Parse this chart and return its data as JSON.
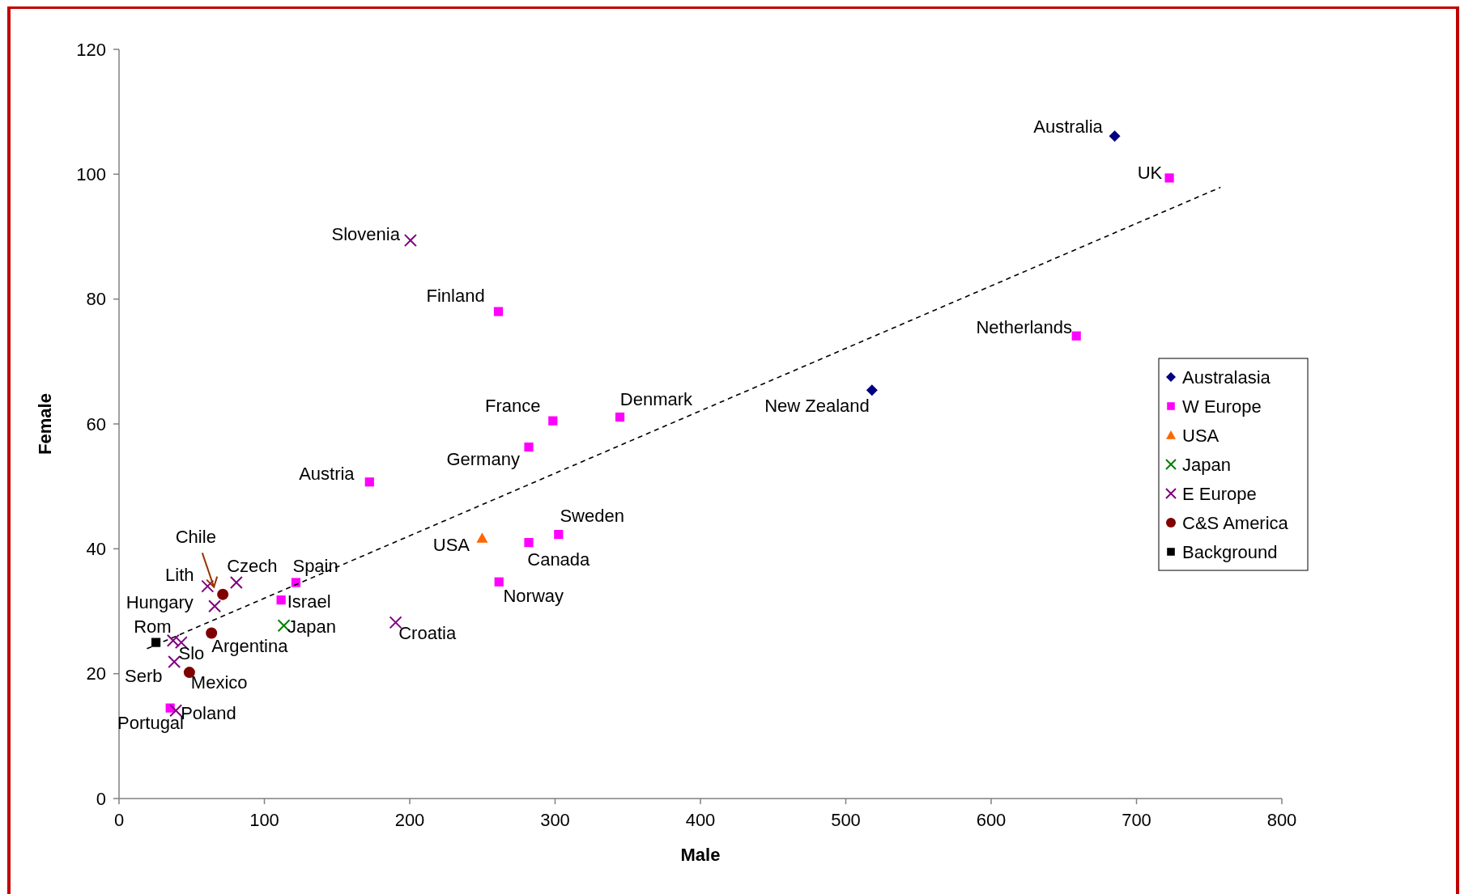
{
  "chart_data": {
    "type": "scatter",
    "xlabel": "Male",
    "ylabel": "Female",
    "xlim": [
      0,
      800
    ],
    "ylim": [
      0,
      120
    ],
    "xticks": [
      0,
      100,
      200,
      300,
      400,
      500,
      600,
      700,
      800
    ],
    "yticks": [
      0,
      20,
      40,
      60,
      80,
      100,
      120
    ],
    "grid": false,
    "legend": "right",
    "series": [
      {
        "name": "Australasia",
        "color": "#000080",
        "marker": "diamond",
        "x": [
          685,
          518
        ],
        "values": [
          106.1,
          65.4
        ]
      },
      {
        "name": "W Europe",
        "color": "#ff00ff",
        "marker": "square",
        "x": [
          722.6,
          261,
          658.6,
          298.5,
          344.6,
          281.9,
          172.3,
          281.9,
          302.4,
          261.4,
          121.7,
          111.5,
          35.2
        ],
        "values": [
          99.4,
          78,
          74.1,
          60.5,
          61.1,
          56.3,
          50.7,
          41,
          42.3,
          34.7,
          34.6,
          31.8,
          14.5
        ]
      },
      {
        "name": "USA",
        "color": "#ff6600",
        "marker": "triangle",
        "x": [
          249.8
        ],
        "values": [
          41.7
        ]
      },
      {
        "name": "Japan",
        "color": "#008000",
        "marker": "cross",
        "x": [
          113.4
        ],
        "values": [
          27.7
        ]
      },
      {
        "name": "E Europe",
        "color": "#800080",
        "marker": "cross",
        "x": [
          200.5,
          80.7,
          60.9,
          65.8,
          37.2,
          42.8,
          38,
          39.1,
          190.3
        ],
        "values": [
          89.4,
          34.6,
          34,
          30.8,
          25.3,
          25,
          21.9,
          14.1,
          28.2
        ]
      },
      {
        "name": "C&S America",
        "color": "#800000",
        "marker": "circle",
        "x": [
          71.4,
          63.6,
          48.4
        ],
        "values": [
          32.7,
          26.5,
          20.2
        ]
      },
      {
        "name": "Background",
        "color": "#000000",
        "marker": "square",
        "x": [
          25.4
        ],
        "values": [
          25
        ]
      },
      {
        "type": "line",
        "color": "#000000",
        "line_style": "dashed",
        "marker": "none",
        "x": [
          19.2,
          757.8
        ],
        "values": [
          24,
          97.9
        ]
      }
    ],
    "annotations": [
      {
        "text": "Australia",
        "x": 685,
        "y": 106.1
      },
      {
        "text": "UK",
        "x": 722.6,
        "y": 99.4
      },
      {
        "text": "Slovenia",
        "x": 200.5,
        "y": 89.4
      },
      {
        "text": "Finland",
        "x": 261,
        "y": 78
      },
      {
        "text": "Netherlands",
        "x": 658.6,
        "y": 74.1
      },
      {
        "text": "France",
        "x": 298.5,
        "y": 60.5
      },
      {
        "text": "Denmark",
        "x": 344.6,
        "y": 61.1
      },
      {
        "text": "New Zealand",
        "x": 518,
        "y": 65.4
      },
      {
        "text": "Germany",
        "x": 281.9,
        "y": 56.3
      },
      {
        "text": "Austria",
        "x": 172.3,
        "y": 50.7
      },
      {
        "text": "Sweden",
        "x": 302.4,
        "y": 42.3
      },
      {
        "text": "USA",
        "x": 249.8,
        "y": 41.7
      },
      {
        "text": "Canada",
        "x": 281.9,
        "y": 41
      },
      {
        "text": "Norway",
        "x": 261.4,
        "y": 34.7
      },
      {
        "text": "Chile",
        "x": 71.4,
        "y": 32.7
      },
      {
        "text": "Lith",
        "x": 60.9,
        "y": 34
      },
      {
        "text": "Czech",
        "x": 80.7,
        "y": 34.6
      },
      {
        "text": "Spain",
        "x": 121.7,
        "y": 34.6
      },
      {
        "text": "Hungary",
        "x": 65.8,
        "y": 30.8
      },
      {
        "text": "Israel",
        "x": 111.5,
        "y": 31.8
      },
      {
        "text": "Rom",
        "x": 37.2,
        "y": 25.3
      },
      {
        "text": "Japan",
        "x": 113.4,
        "y": 27.7
      },
      {
        "text": "Argentina",
        "x": 63.6,
        "y": 26.5
      },
      {
        "text": "Slo",
        "x": 42.8,
        "y": 25
      },
      {
        "text": "Croatia",
        "x": 190.3,
        "y": 28.2
      },
      {
        "text": "Serb",
        "x": 38,
        "y": 21.9
      },
      {
        "text": "Mexico",
        "x": 48.4,
        "y": 20.2
      },
      {
        "text": "Poland",
        "x": 39.1,
        "y": 14.1
      },
      {
        "text": "Portugal",
        "x": 35.2,
        "y": 14.5
      }
    ]
  }
}
